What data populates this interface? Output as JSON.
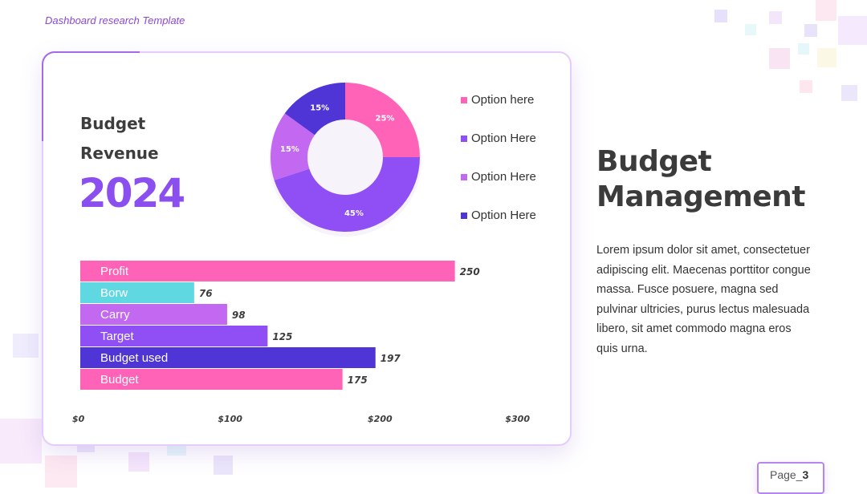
{
  "header": {
    "tag": "Dashboard research Template"
  },
  "card": {
    "revenue_label": "Budget\nRevenue",
    "revenue_year": "2024"
  },
  "legend": [
    {
      "label": "Option here",
      "color": "#ff63b8"
    },
    {
      "label": "Option Here",
      "color": "#8f4ff5"
    },
    {
      "label": "Option Here",
      "color": "#c368f0"
    },
    {
      "label": "Option Here",
      "color": "#4f35d6"
    }
  ],
  "chart_data": [
    {
      "type": "pie",
      "variant": "donut",
      "slices": [
        {
          "label": "25%",
          "value": 25,
          "color": "#ff63b8"
        },
        {
          "label": "45%",
          "value": 45,
          "color": "#8f4ff5"
        },
        {
          "label": "15%",
          "value": 15,
          "color": "#c368f0"
        },
        {
          "label": "15%",
          "value": 15,
          "color": "#4f35d6"
        }
      ]
    },
    {
      "type": "bar",
      "orientation": "horizontal",
      "categories": [
        "Profit",
        "Borw",
        "Carry",
        "Target",
        "Budget used",
        "Budget"
      ],
      "values": [
        250,
        76,
        98,
        125,
        197,
        175
      ],
      "value_labels": [
        "250",
        "76",
        "98",
        "125",
        "197",
        "175"
      ],
      "colors": [
        "#ff63b8",
        "#60d8e2",
        "#c368f0",
        "#8f4ff5",
        "#4f35d6",
        "#ff63b8"
      ],
      "xlim": [
        0,
        300
      ],
      "xticks": [
        "$0",
        "$100",
        "$200",
        "$300"
      ],
      "grid": false
    }
  ],
  "side": {
    "title": "Budget\nManagement",
    "body": "Lorem ipsum dolor sit amet, consectetuer adipiscing elit. Maecenas porttitor congue massa. Fusce posuere, magna sed pulvinar ultricies, purus lectus malesuada libero, sit amet commodo magna eros quis urna."
  },
  "footer": {
    "page_prefix": "Page_",
    "page_number": "3"
  }
}
